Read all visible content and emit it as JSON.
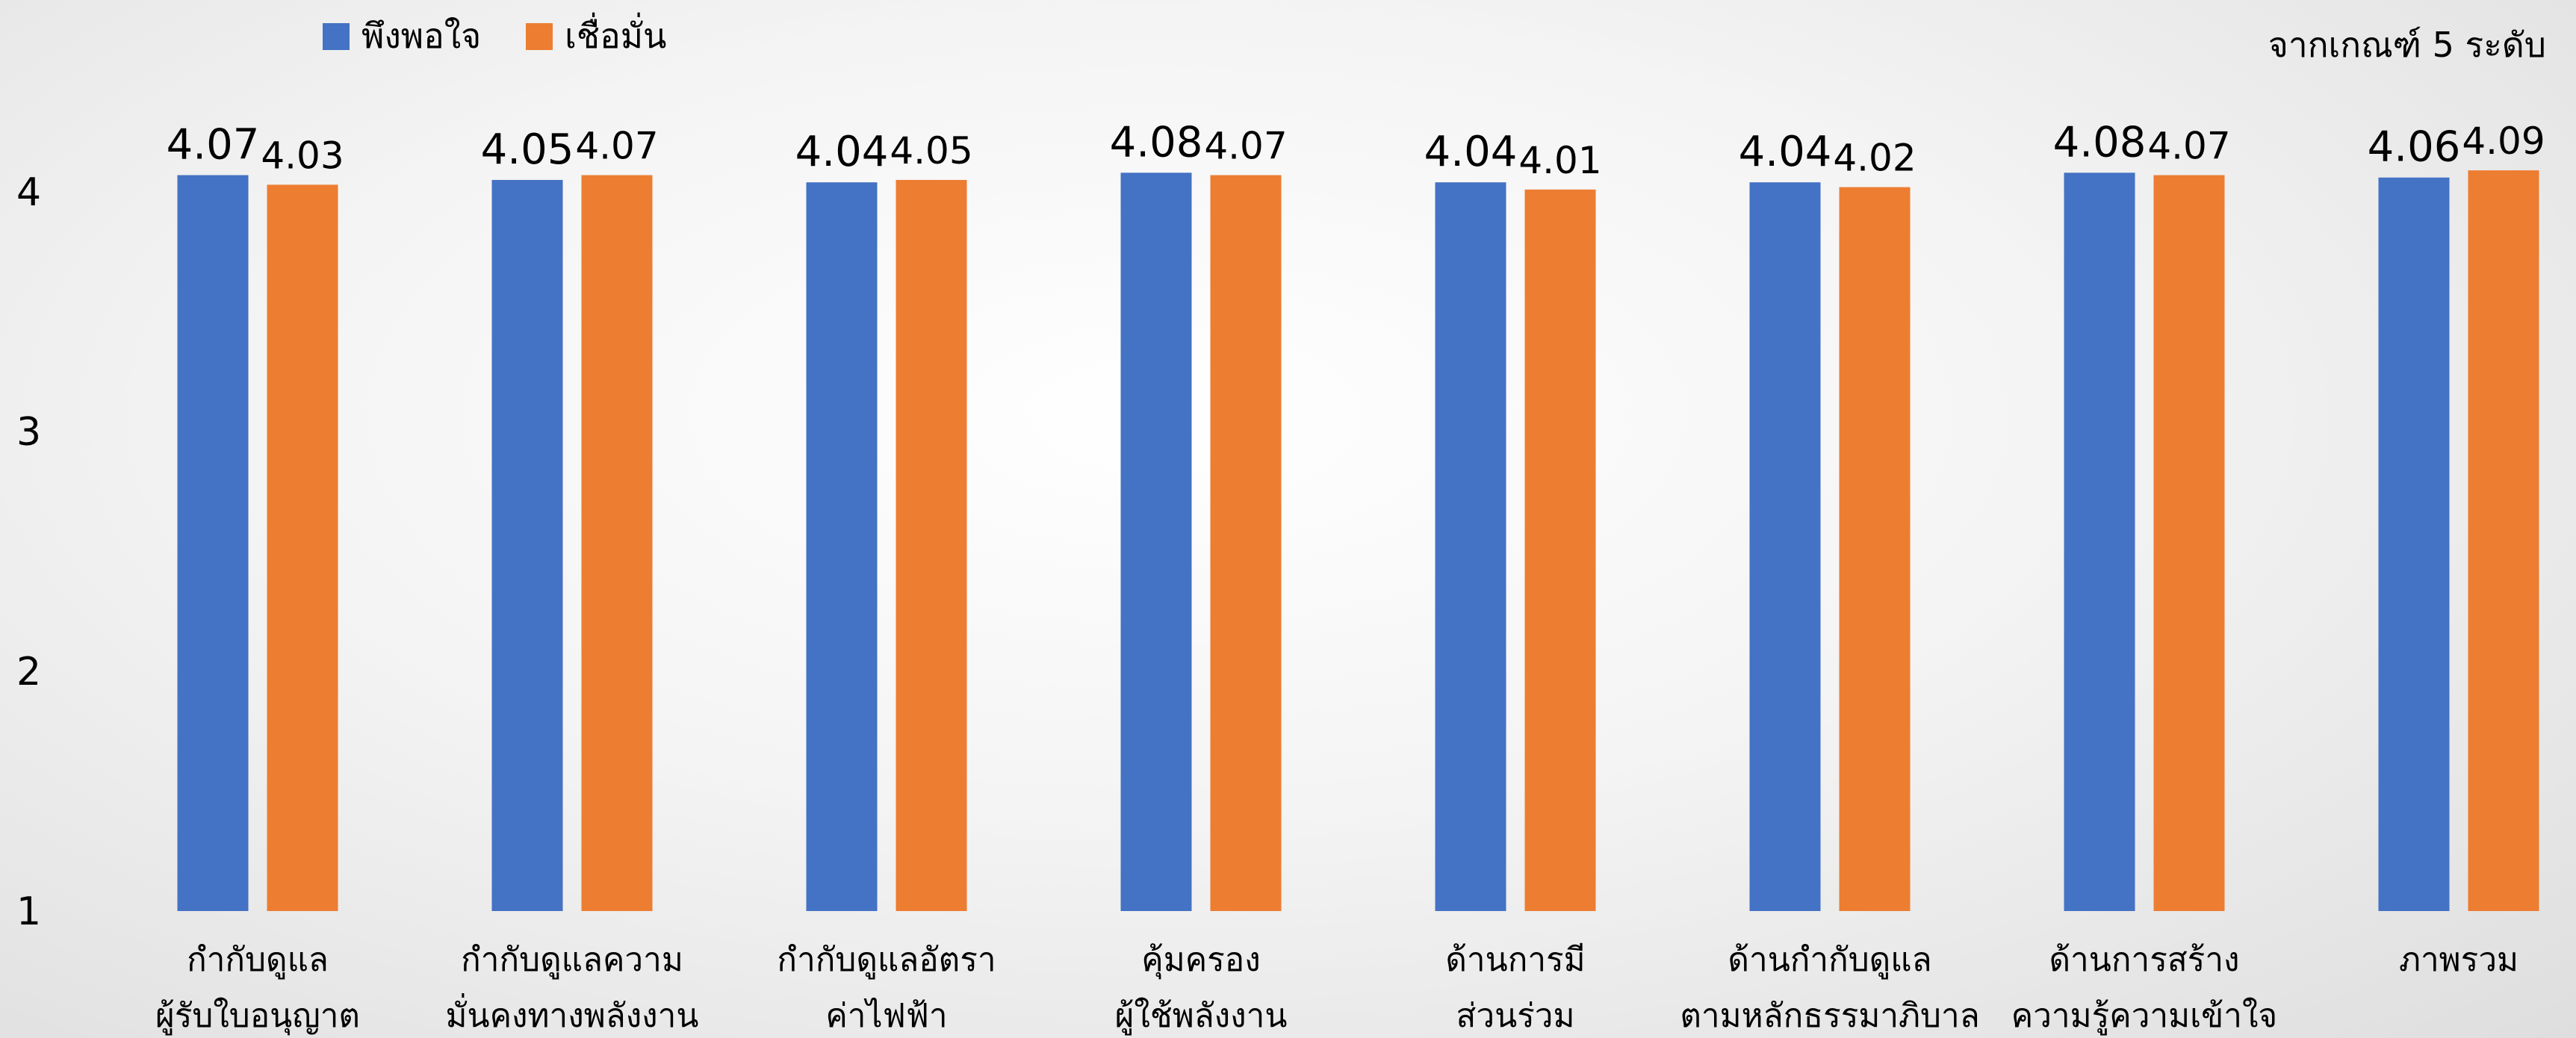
{
  "chart_data": {
    "type": "bar",
    "subtitle": "จากเกณฑ์ 5 ระดับ",
    "categories": [
      [
        "กำกับดูแล",
        "ผู้รับใบอนุญาต"
      ],
      [
        "กำกับดูแลความ",
        "มั่นคงทางพลังงาน"
      ],
      [
        "กำกับดูแลอัตรา",
        "ค่าไฟฟ้า"
      ],
      [
        "คุ้มครอง",
        "ผู้ใช้พลังงาน"
      ],
      [
        "ด้านการมี",
        "ส่วนร่วม"
      ],
      [
        "ด้านกำกับดูแล",
        "ตามหลักธรรมาภิบาล"
      ],
      [
        "ด้านการสร้าง",
        "ความรู้ความเข้าใจ"
      ],
      [
        "ภาพรวม"
      ]
    ],
    "series": [
      {
        "name": "พึงพอใจ",
        "color": "#4472C4",
        "values": [
          4.07,
          4.05,
          4.04,
          4.08,
          4.04,
          4.04,
          4.08,
          4.06
        ],
        "labels": [
          "4.07",
          "4.05",
          "4.04",
          "4.08",
          "4.04",
          "4.04",
          "4.08",
          "4.06"
        ]
      },
      {
        "name": "เชื่อมั่น",
        "color": "#ED7D31",
        "values": [
          4.03,
          4.07,
          4.05,
          4.07,
          4.01,
          4.02,
          4.07,
          4.09
        ],
        "labels": [
          "4.03",
          "4.07",
          "4.05",
          "4.07",
          "4.01",
          "4.02",
          "4.07",
          "4.09"
        ]
      }
    ],
    "yticks": [
      "1",
      "2",
      "3",
      "4"
    ],
    "ylim": [
      1,
      4.3
    ],
    "grid": false,
    "legend": "top-left"
  }
}
